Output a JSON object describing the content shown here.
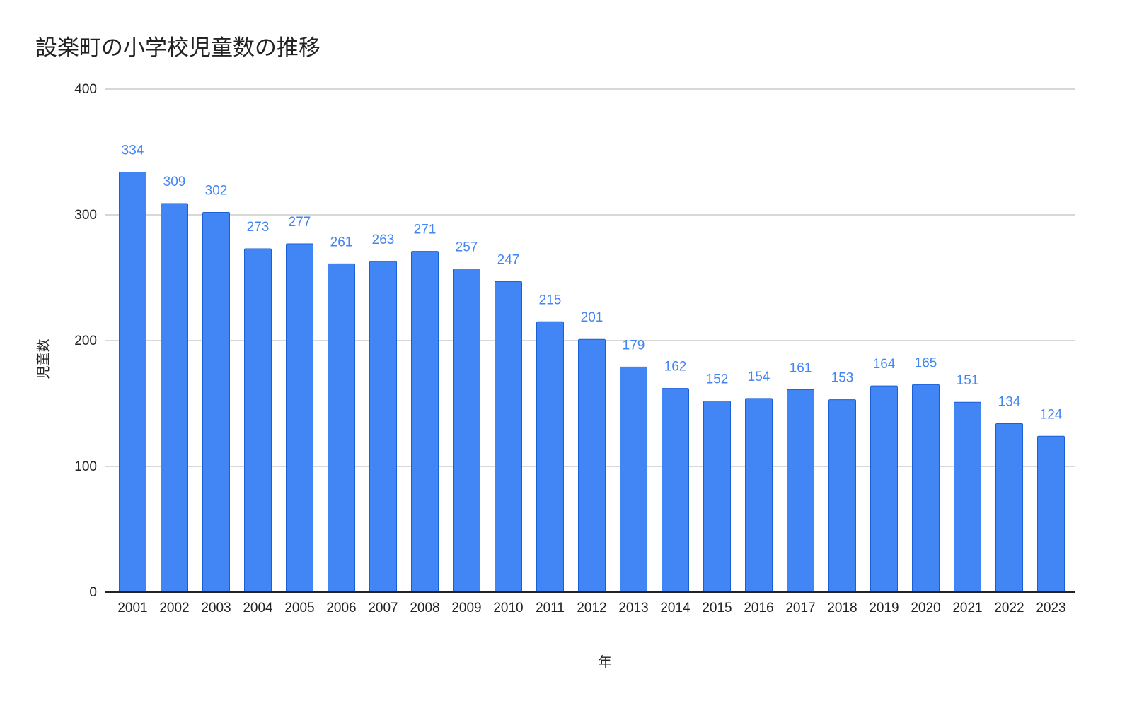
{
  "chart_data": {
    "type": "bar",
    "title": "設楽町の小学校児童数の推移",
    "xlabel": "年",
    "ylabel": "児童数",
    "categories": [
      "2001",
      "2002",
      "2003",
      "2004",
      "2005",
      "2006",
      "2007",
      "2008",
      "2009",
      "2010",
      "2011",
      "2012",
      "2013",
      "2014",
      "2015",
      "2016",
      "2017",
      "2018",
      "2019",
      "2020",
      "2021",
      "2022",
      "2023"
    ],
    "values": [
      334,
      309,
      302,
      273,
      277,
      261,
      263,
      271,
      257,
      247,
      215,
      201,
      179,
      162,
      152,
      154,
      161,
      153,
      164,
      165,
      151,
      134,
      124
    ],
    "data_labels": [
      "334",
      "309",
      "302",
      "273",
      "277",
      "261",
      "263",
      "271",
      "257",
      "247",
      "215",
      "201",
      "179",
      "162",
      "152",
      "154",
      "161",
      "153",
      "164",
      "165",
      "151",
      "134",
      "124"
    ],
    "ylim": [
      0,
      400
    ],
    "yticks": [
      0,
      100,
      200,
      300,
      400
    ],
    "grid": true,
    "legend": "none",
    "colors": {
      "bar": "#4285f4",
      "bar_edge": "#1a5fd6",
      "data_label": "#4285f4",
      "grid": "#cccccc",
      "axis": "#222222",
      "text": "#222222"
    }
  }
}
